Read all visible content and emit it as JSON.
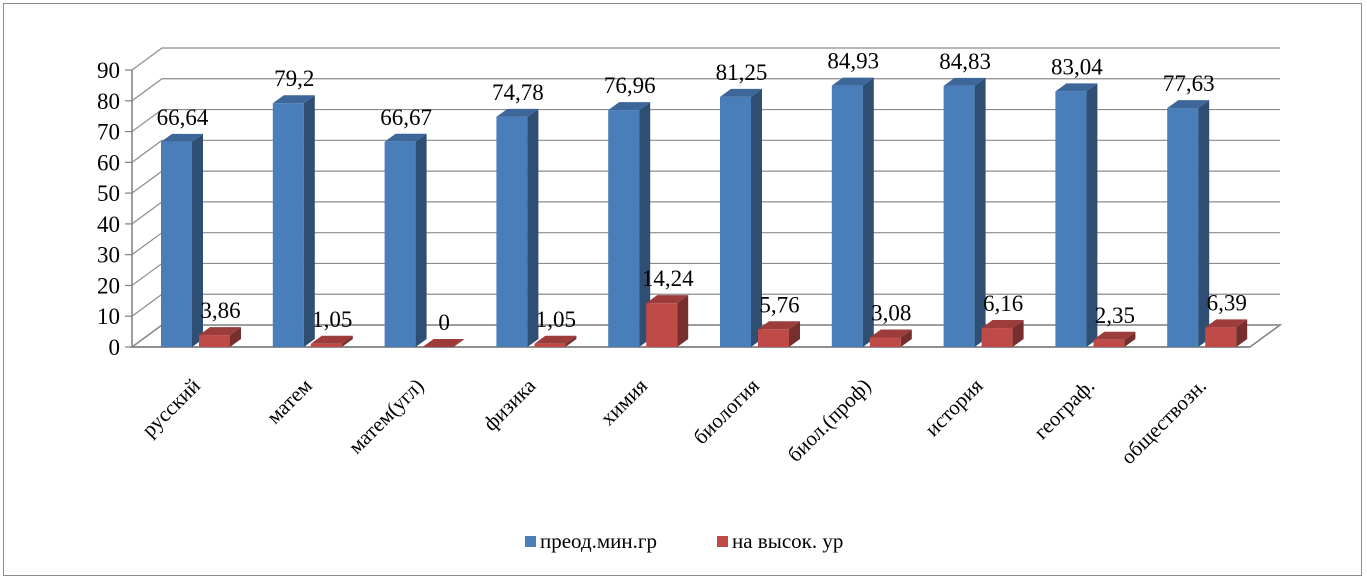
{
  "chart_data": {
    "type": "bar",
    "title": "",
    "xlabel": "",
    "ylabel": "",
    "ylim": [
      0,
      90
    ],
    "yticks": [
      "0",
      "10",
      "20",
      "30",
      "40",
      "50",
      "60",
      "70",
      "80",
      "90"
    ],
    "categories": [
      "русский",
      "матем",
      "матем(угл)",
      "физика",
      "химия",
      "биология",
      "биол.(проф)",
      "история",
      "географ.",
      "обществозн."
    ],
    "series": [
      {
        "name": "преод.мин.гр",
        "color": "#4a7ebb",
        "values": [
          66.64,
          79.2,
          66.67,
          74.78,
          76.96,
          81.25,
          84.93,
          84.83,
          83.04,
          77.63
        ],
        "labels": [
          "66,64",
          "79,2",
          "66,67",
          "74,78",
          "76,96",
          "81,25",
          "84,93",
          "84,83",
          "83,04",
          "77,63"
        ]
      },
      {
        "name": "на высок. ур",
        "color": "#be4b48",
        "values": [
          3.86,
          1.05,
          0,
          1.05,
          14.24,
          5.76,
          3.08,
          6.16,
          2.35,
          6.39
        ],
        "labels": [
          "3,86",
          "1,05",
          "0",
          "1,05",
          "14,24",
          "5,76",
          "3,08",
          "6,16",
          "2,35",
          "6,39"
        ]
      }
    ],
    "grid": true,
    "style": "3d-clustered-column",
    "legend_position": "bottom"
  }
}
